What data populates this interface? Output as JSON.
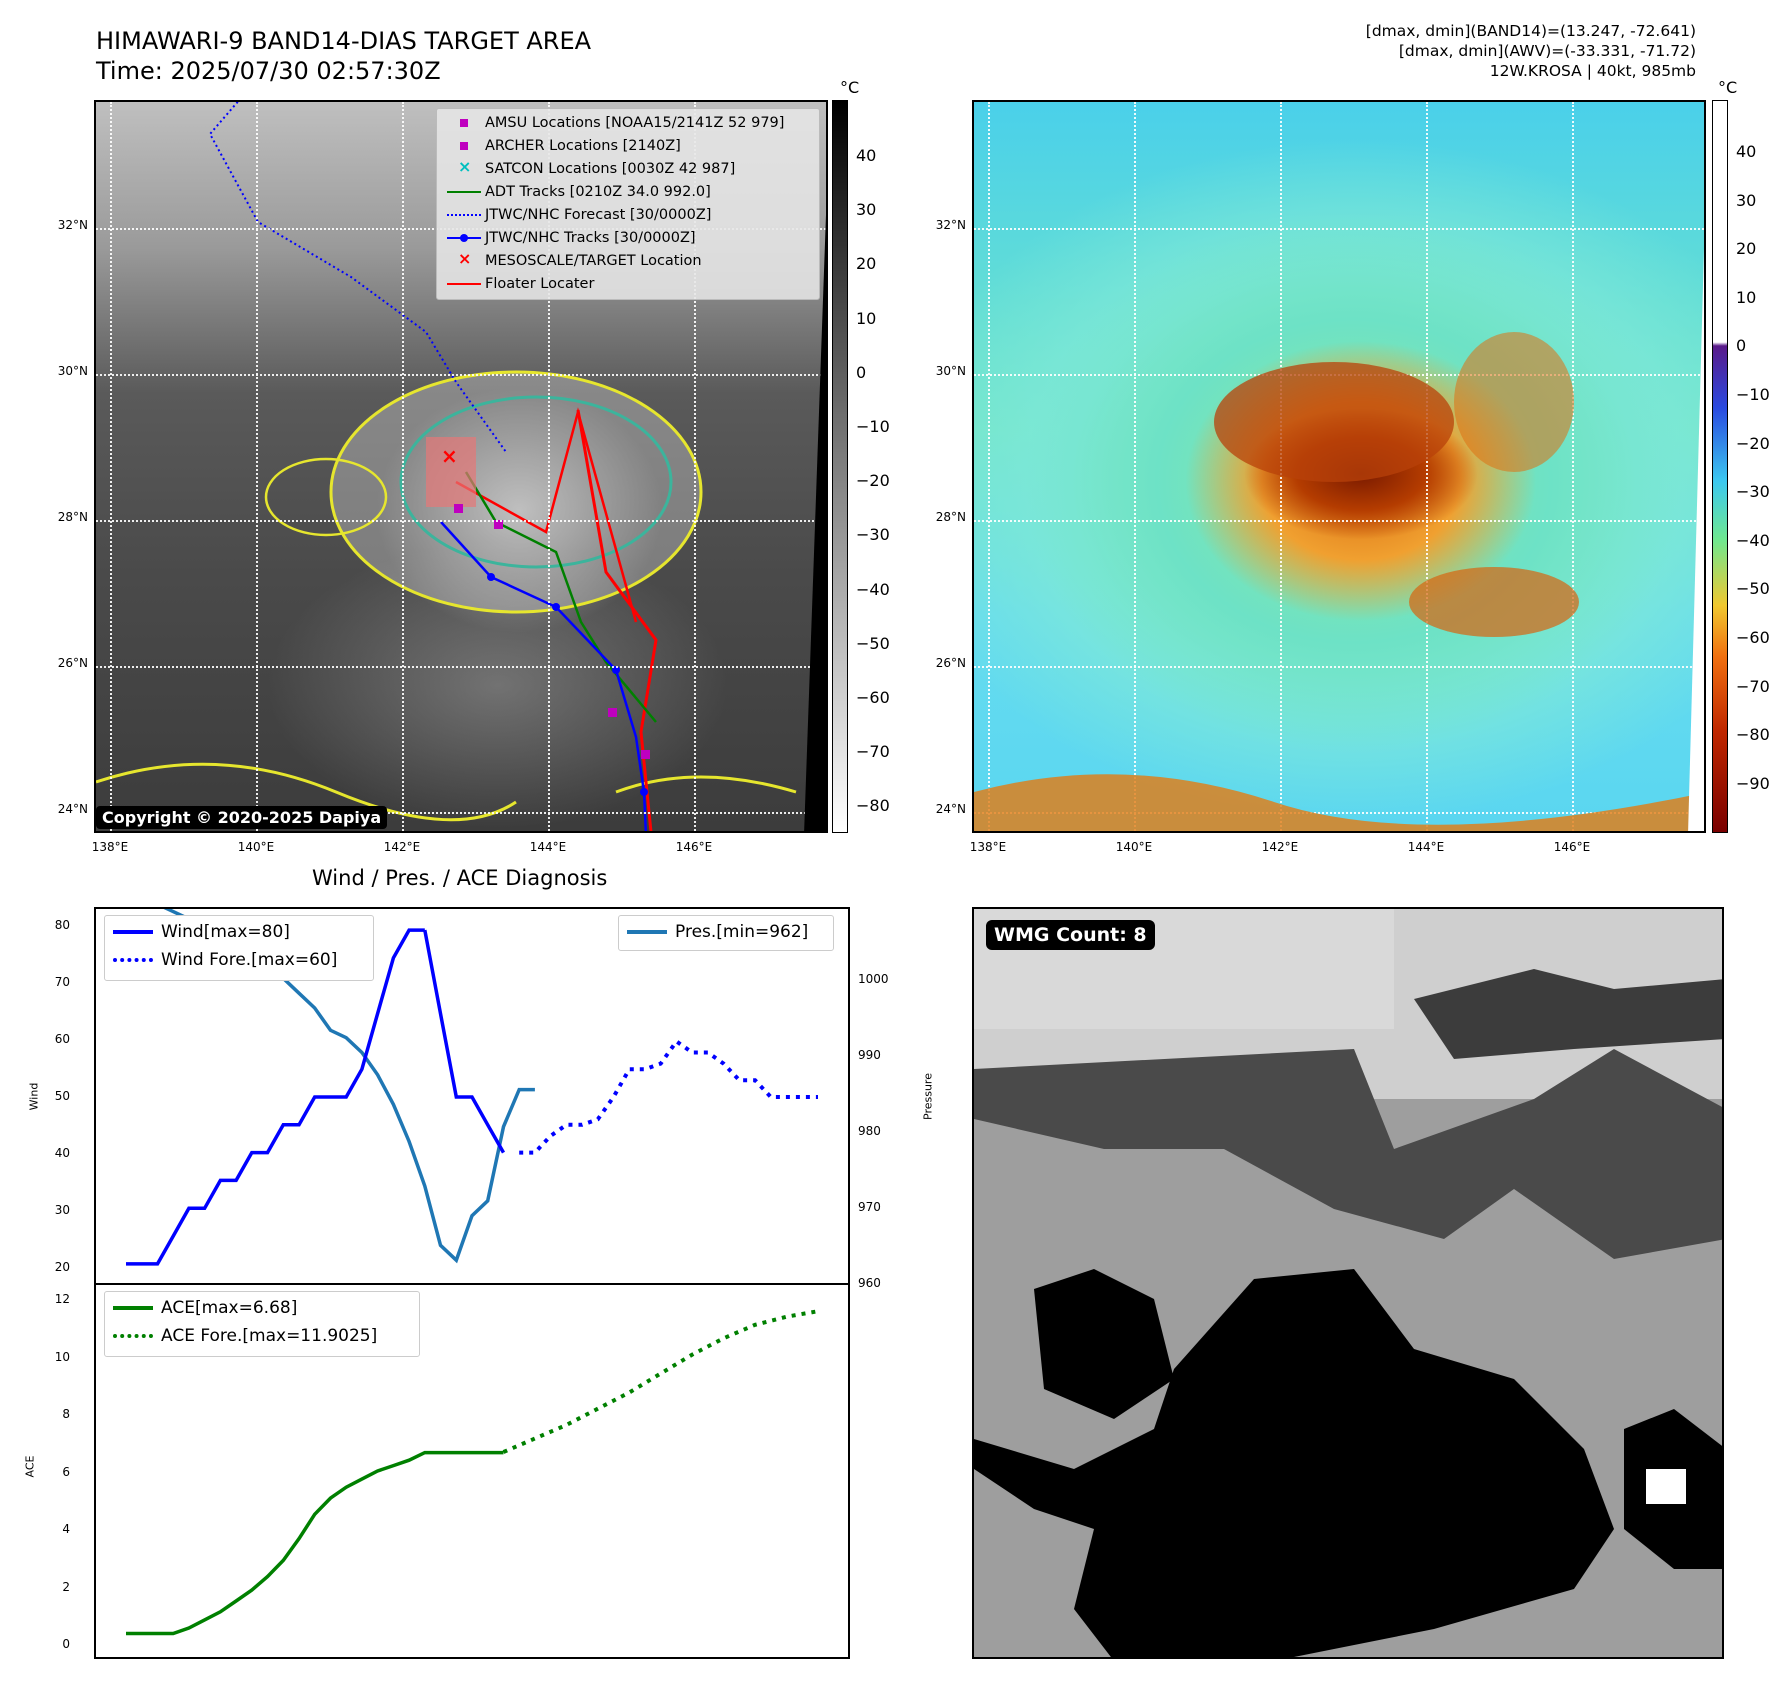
{
  "header": {
    "title_line1": "HIMAWARI-9 BAND14-DIAS TARGET AREA",
    "title_line2": "Time: 2025/07/30 02:57:30Z",
    "info_line1": "[dmax, dmin](BAND14)=(13.247, -72.641)",
    "info_line2": "[dmax, dmin](AWV)=(-33.331, -71.72)",
    "info_line3": "12W.KROSA | 40kt, 985mb"
  },
  "map": {
    "lat_labels": [
      "32°N",
      "30°N",
      "28°N",
      "26°N",
      "24°N"
    ],
    "lon_labels": [
      "138°E",
      "140°E",
      "142°E",
      "144°E",
      "146°E"
    ],
    "copyright": "Copyright © 2020-2025 Dapiya",
    "legend": [
      {
        "label": "AMSU Locations [NOAA15/2141Z 52 979]",
        "marker": "square",
        "color": "#bf00bf"
      },
      {
        "label": "ARCHER Locations [2140Z]",
        "marker": "square",
        "color": "#bf00bf"
      },
      {
        "label": "SATCON Locations [0030Z 42 987]",
        "marker": "x",
        "color": "#00bfbf"
      },
      {
        "label": "ADT Tracks [0210Z 34.0 992.0]",
        "marker": "line",
        "color": "#008000"
      },
      {
        "label": "JTWC/NHC Forecast [30/0000Z]",
        "marker": "dotted",
        "color": "#0000ff"
      },
      {
        "label": "JTWC/NHC Tracks [30/0000Z]",
        "marker": "line-dot",
        "color": "#0000ff"
      },
      {
        "label": "MESOSCALE/TARGET Location",
        "marker": "x",
        "color": "#ff0000"
      },
      {
        "label": "Floater Locater",
        "marker": "line",
        "color": "#ff0000"
      }
    ]
  },
  "colorbar_ir": {
    "unit": "°C",
    "ticks": [
      "40",
      "30",
      "20",
      "10",
      "0",
      "−10",
      "−20",
      "−30",
      "−40",
      "−50",
      "−60",
      "−70",
      "−80"
    ]
  },
  "colorbar_awv": {
    "unit": "°C",
    "ticks": [
      "40",
      "30",
      "20",
      "10",
      "0",
      "−10",
      "−20",
      "−30",
      "−40",
      "−50",
      "−60",
      "−70",
      "−80",
      "−90"
    ]
  },
  "diagnosis": {
    "title": "Wind / Pres. / ACE Diagnosis",
    "wind_ylabel": "Wind",
    "pres_ylabel": "Pressure",
    "ace_ylabel": "ACE",
    "legend_wind": "Wind[max=80]",
    "legend_wind_fore": "Wind Fore.[max=60]",
    "legend_pres": "Pres.[min=962]",
    "legend_ace": "ACE[max=6.68]",
    "legend_ace_fore": "ACE Fore.[max=11.9025]",
    "wind_ticks": [
      "80",
      "70",
      "60",
      "50",
      "40",
      "30",
      "20"
    ],
    "pres_ticks": [
      "1000",
      "990",
      "980",
      "970",
      "960"
    ],
    "ace_ticks": [
      "12",
      "10",
      "8",
      "6",
      "4",
      "2",
      "0"
    ]
  },
  "wmg": {
    "badge": "WMG Count: 8"
  },
  "chart_data": [
    {
      "type": "line",
      "title": "Wind / Pres. / ACE Diagnosis",
      "ylabel": "Wind",
      "ylim": [
        18,
        82
      ],
      "series": [
        {
          "name": "Wind[max=80]",
          "x": [
            0,
            1,
            2,
            3,
            4,
            5,
            6,
            7,
            8,
            9,
            10,
            11,
            12,
            13,
            14,
            15,
            16,
            17,
            18,
            19
          ],
          "values": [
            20,
            20,
            20,
            25,
            30,
            30,
            35,
            35,
            40,
            40,
            45,
            45,
            50,
            50,
            50,
            55,
            65,
            75,
            80,
            80
          ]
        },
        {
          "name": "Wind[max=80] (cont)",
          "x": [
            19,
            20,
            21,
            22,
            23,
            24
          ],
          "values": [
            80,
            65,
            50,
            50,
            45,
            40
          ]
        },
        {
          "name": "Wind Fore.[max=60]",
          "x": [
            25,
            26,
            27,
            28,
            29,
            30,
            31,
            32,
            33,
            34,
            35,
            36,
            37,
            38,
            39,
            40,
            41,
            42,
            43,
            44
          ],
          "values": [
            40,
            40,
            43,
            45,
            45,
            46,
            50,
            55,
            55,
            56,
            60,
            58,
            58,
            56,
            53,
            53,
            50,
            50,
            50,
            50
          ]
        }
      ]
    },
    {
      "type": "line",
      "ylabel": "Pressure",
      "ylim": [
        960,
        1008
      ],
      "series": [
        {
          "name": "Pres.[min=962]",
          "x": [
            0,
            1,
            2,
            3,
            4,
            5,
            6,
            7,
            8,
            9,
            10,
            11,
            12,
            13,
            14,
            15,
            16,
            17,
            18,
            19,
            20,
            21,
            22,
            23,
            24,
            25,
            26
          ],
          "values": [
            1010,
            1010,
            1010,
            1009,
            1008,
            1006,
            1004,
            1003,
            1003,
            1002,
            1000,
            998,
            996,
            993,
            992,
            990,
            987,
            983,
            978,
            972,
            964,
            962,
            968,
            970,
            980,
            985,
            985
          ]
        }
      ]
    },
    {
      "type": "line",
      "ylabel": "ACE",
      "ylim": [
        -0.5,
        12.5
      ],
      "series": [
        {
          "name": "ACE[max=6.68]",
          "x": [
            0,
            1,
            2,
            3,
            4,
            5,
            6,
            7,
            8,
            9,
            10,
            11,
            12,
            13,
            14,
            15,
            16,
            17,
            18,
            19,
            20,
            21,
            22,
            23,
            24
          ],
          "values": [
            0,
            0,
            0,
            0,
            0.2,
            0.5,
            0.8,
            1.2,
            1.6,
            2.1,
            2.7,
            3.5,
            4.4,
            5.0,
            5.4,
            5.7,
            6.0,
            6.2,
            6.4,
            6.68,
            6.68,
            6.68,
            6.68,
            6.68,
            6.68
          ]
        },
        {
          "name": "ACE Fore.[max=11.9025]",
          "x": [
            24,
            26,
            28,
            30,
            32,
            34,
            36,
            38,
            40,
            42,
            44
          ],
          "values": [
            6.7,
            7.2,
            7.7,
            8.3,
            8.9,
            9.6,
            10.3,
            10.9,
            11.4,
            11.7,
            11.9
          ]
        }
      ]
    }
  ]
}
